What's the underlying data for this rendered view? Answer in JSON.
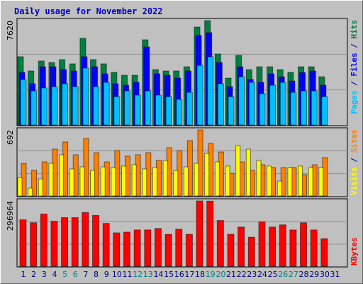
{
  "title": "Daily usage for November 2022",
  "categories": [
    "1",
    "2",
    "3",
    "4",
    "5",
    "6",
    "7",
    "8",
    "9",
    "10",
    "11",
    "12",
    "13",
    "14",
    "15",
    "16",
    "17",
    "18",
    "19",
    "20",
    "21",
    "22",
    "23",
    "24",
    "25",
    "26",
    "27",
    "28",
    "29",
    "30",
    "31"
  ],
  "highlight_categories": [
    "5",
    "6",
    "12",
    "13",
    "19",
    "20",
    "26",
    "27"
  ],
  "highlight_color": "#008080",
  "legend_separator": " / ",
  "chart_data": [
    {
      "type": "bar",
      "ylim": [
        0,
        7620
      ],
      "yticks": [
        7620
      ],
      "series": [
        {
          "name": "Hits",
          "color": "#008040",
          "values": [
            4980,
            3940,
            4670,
            4560,
            4770,
            4460,
            6320,
            4770,
            4460,
            3840,
            3630,
            3630,
            6220,
            4040,
            3940,
            3940,
            4250,
            7150,
            7620,
            5180,
            3420,
            5080,
            4040,
            4250,
            4250,
            4040,
            3840,
            4250,
            4250,
            3520,
            null
          ]
        },
        {
          "name": "Files",
          "color": "#0000ff",
          "values": [
            3840,
            3010,
            4250,
            4250,
            4040,
            3940,
            4980,
            4250,
            3730,
            3010,
            2900,
            3110,
            5700,
            3730,
            3630,
            3420,
            3940,
            6530,
            6740,
            4560,
            2800,
            4250,
            3320,
            3110,
            3730,
            3520,
            3210,
            3830,
            3940,
            2900,
            null
          ]
        },
        {
          "name": "Pages",
          "color": "#00c0ff",
          "values": [
            3320,
            2490,
            2700,
            2800,
            3010,
            2800,
            4150,
            2800,
            3110,
            2070,
            2490,
            2180,
            2490,
            2180,
            2070,
            1870,
            2380,
            4350,
            4980,
            3010,
            2070,
            3520,
            3110,
            2280,
            2900,
            3110,
            2380,
            2490,
            2490,
            2070,
            null
          ]
        }
      ]
    },
    {
      "type": "bar",
      "ylim": [
        0,
        692
      ],
      "yticks": [
        692
      ],
      "series": [
        {
          "name": "Sites",
          "color": "#ff8000",
          "values": [
            342,
            268,
            357,
            491,
            565,
            432,
            603,
            454,
            357,
            476,
            417,
            432,
            454,
            372,
            506,
            476,
            580,
            692,
            551,
            461,
            238,
            357,
            268,
            327,
            298,
            298,
            298,
            223,
            327,
            402,
            null
          ]
        },
        {
          "name": "Visits",
          "color": "#ffff00",
          "values": [
            193,
            82,
            179,
            342,
            432,
            283,
            305,
            268,
            305,
            298,
            313,
            327,
            283,
            298,
            372,
            268,
            305,
            342,
            446,
            357,
            313,
            528,
            491,
            372,
            313,
            156,
            298,
            313,
            298,
            298,
            null
          ]
        }
      ]
    },
    {
      "type": "bar",
      "ylim": [
        0,
        296964
      ],
      "yticks": [
        296964
      ],
      "series": [
        {
          "name": "KBytes",
          "color": "#ff0000",
          "values": [
            211200,
            198000,
            237600,
            204600,
            221100,
            221100,
            244200,
            231000,
            194700,
            151800,
            155100,
            165000,
            165000,
            171600,
            145200,
            168300,
            145200,
            296964,
            296000,
            207900,
            145200,
            178200,
            132000,
            201300,
            178200,
            188100,
            165000,
            198000,
            165000,
            125400,
            null
          ]
        }
      ]
    }
  ]
}
